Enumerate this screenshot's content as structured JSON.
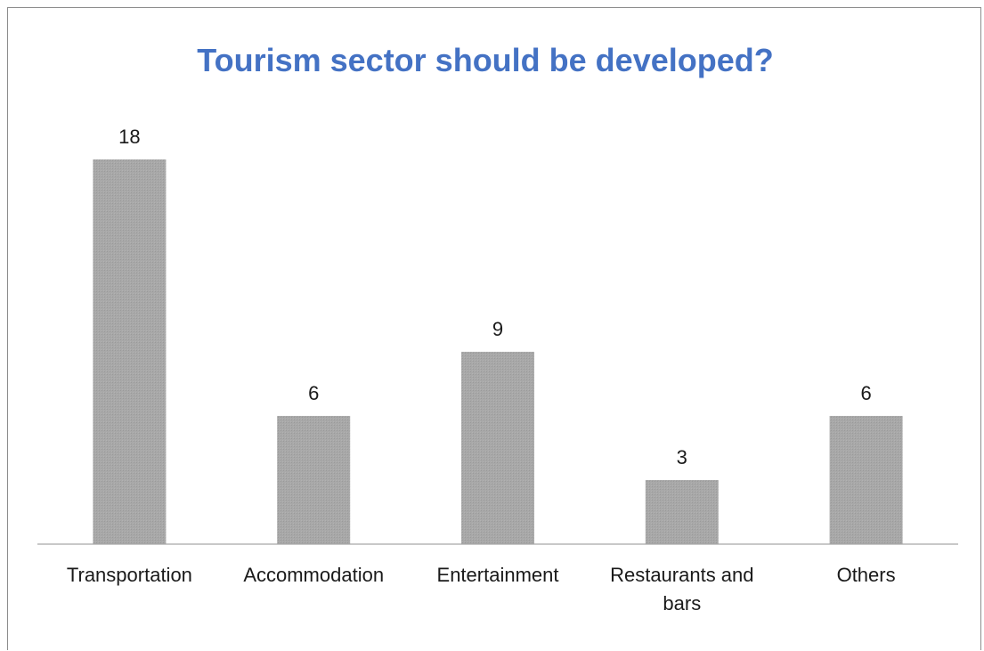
{
  "chart_data": {
    "type": "bar",
    "title": "Tourism sector should be developed?",
    "categories": [
      "Transportation",
      "Accommodation",
      "Entertainment",
      "Restaurants and bars",
      "Others"
    ],
    "category_lines": [
      [
        "Transportation"
      ],
      [
        "Accommodation"
      ],
      [
        "Entertainment"
      ],
      [
        "Restaurants and",
        "bars"
      ],
      [
        "Others"
      ]
    ],
    "values": [
      18,
      6,
      9,
      3,
      6
    ],
    "value_labels": [
      "18",
      "6",
      "9",
      "3",
      "6"
    ],
    "xlabel": "",
    "ylabel": "",
    "ylim": [
      0,
      18
    ],
    "grid": false,
    "legend": "none",
    "bar_color": "#a6a6a6",
    "title_color": "#4472c4"
  }
}
